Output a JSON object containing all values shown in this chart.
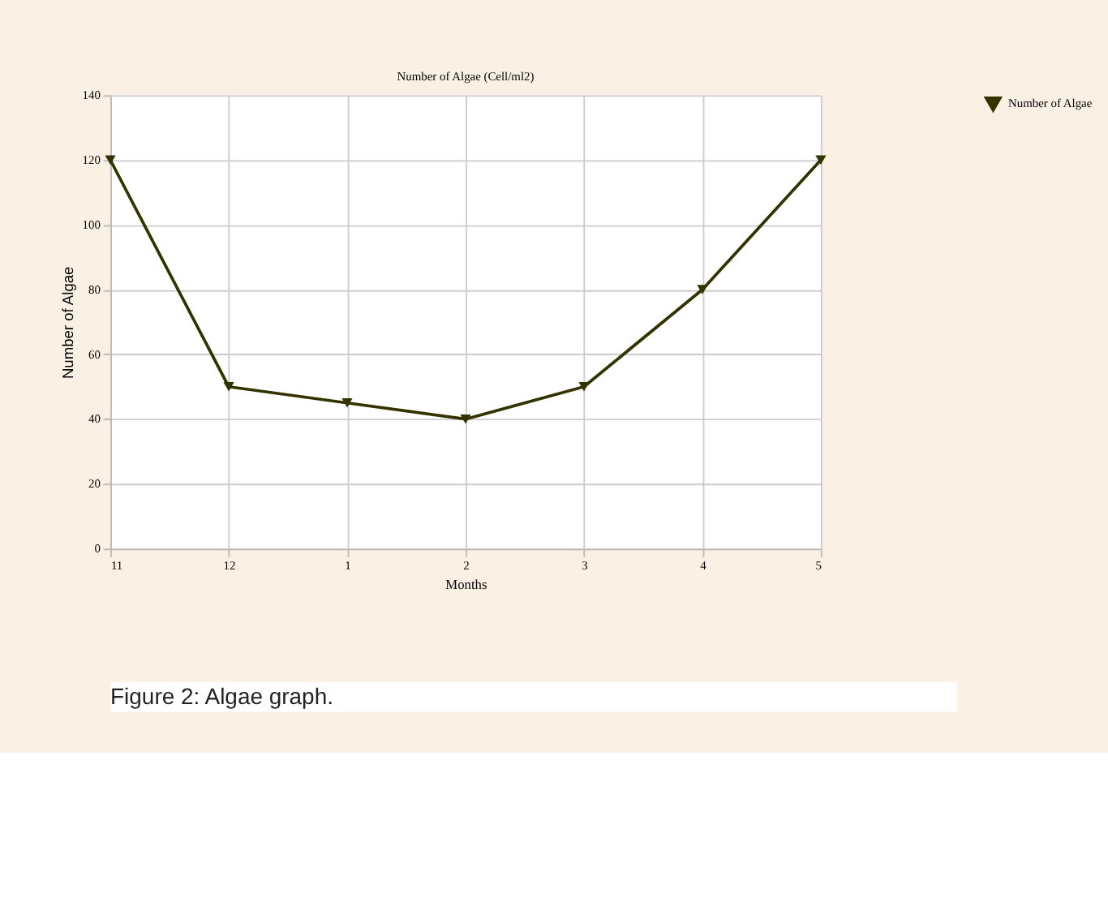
{
  "chart_data": {
    "type": "line",
    "title": "Number of Algae (Cell/ml2)",
    "xlabel": "Months",
    "ylabel": "Number of Algae",
    "categories": [
      "11",
      "12",
      "1",
      "2",
      "3",
      "4",
      "5"
    ],
    "series": [
      {
        "name": "Number of Algae",
        "color": "#333300",
        "values": [
          120,
          50,
          45,
          40,
          50,
          80,
          120
        ]
      }
    ],
    "ylim": [
      0,
      140
    ],
    "yticks": [
      0,
      20,
      40,
      60,
      80,
      100,
      120,
      140
    ],
    "grid": true,
    "legend": "right",
    "marker": "triangle-down",
    "line_style": "solid",
    "annotations": [
      "Figure 2: Algae graph."
    ]
  }
}
